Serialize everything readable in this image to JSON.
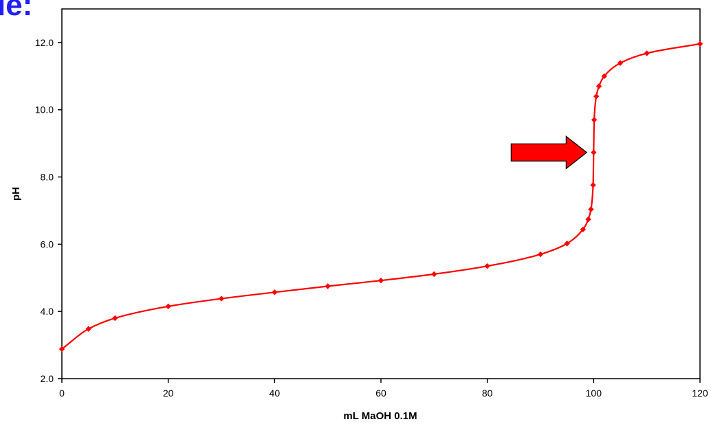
{
  "heading_fragment": "le:",
  "colors": {
    "heading": "#1f1fff",
    "series": "#ff0000",
    "arrow_fill": "#ff0000",
    "arrow_stroke": "#000000",
    "axis": "#000000"
  },
  "chart_data": {
    "type": "scatter",
    "title": "",
    "xlabel": "mL MaOH 0.1M",
    "ylabel": "pH",
    "xlim": [
      0,
      120
    ],
    "ylim": [
      2.0,
      13.0
    ],
    "x_ticks": [
      "0",
      "20",
      "40",
      "60",
      "80",
      "100",
      "120"
    ],
    "y_ticks": [
      "2.0",
      "4.0",
      "6.0",
      "8.0",
      "10.0",
      "12.0"
    ],
    "grid": false,
    "legend": "none",
    "smooth_line": true,
    "series": [
      {
        "x": [
          0,
          5,
          10,
          20,
          30,
          40,
          50,
          60,
          70,
          80,
          90,
          95,
          98,
          99,
          99.5,
          99.9,
          100,
          100.1,
          100.5,
          101,
          102,
          105,
          110,
          120
        ],
        "y": [
          2.88,
          3.48,
          3.8,
          4.15,
          4.38,
          4.57,
          4.75,
          4.92,
          5.11,
          5.35,
          5.7,
          6.02,
          6.44,
          6.74,
          7.04,
          7.76,
          8.73,
          9.7,
          10.4,
          10.7,
          11.0,
          11.39,
          11.68,
          11.96
        ]
      }
    ],
    "annotation": {
      "shape": "right-arrow",
      "points_to": {
        "x": 100,
        "y": 8.73
      }
    }
  }
}
